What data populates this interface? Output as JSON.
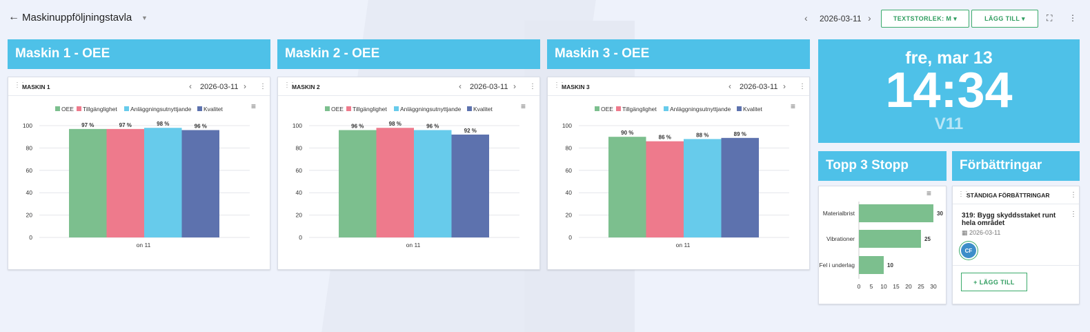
{
  "header": {
    "title": "Maskinuppföljningstavla",
    "back_icon": "←",
    "title_caret": "▼",
    "date": "2026-03-11",
    "prev_icon": "‹",
    "next_icon": "›",
    "textsize_label": "TEXTSTORLEK: M ▾",
    "add_label": "LÄGG TILL ▾",
    "fullscreen_icon": "⛶",
    "more_icon": "⋮"
  },
  "colors": {
    "accent": "#4ec1e8",
    "oee": "#7cbf8e",
    "availability": "#ee7a8c",
    "utilization": "#67cbeb",
    "quality": "#5d72ae"
  },
  "machines": [
    {
      "header": "Maskin 1 - OEE",
      "card_title": "MASKIN 1",
      "date": "2026-03-11"
    },
    {
      "header": "Maskin 2 - OEE",
      "card_title": "MASKIN 2",
      "date": "2026-03-11"
    },
    {
      "header": "Maskin 3 - OEE",
      "card_title": "MASKIN 3",
      "date": "2026-03-11"
    }
  ],
  "chart_data": [
    {
      "type": "bar",
      "categories": [
        "on 11"
      ],
      "series": [
        {
          "name": "OEE",
          "values": [
            97
          ]
        },
        {
          "name": "Tillgänglighet",
          "values": [
            97
          ]
        },
        {
          "name": "Anläggningsutnyttjande",
          "values": [
            98
          ]
        },
        {
          "name": "Kvalitet",
          "values": [
            96
          ]
        }
      ],
      "value_labels": [
        "97 %",
        "97 %",
        "98 %",
        "96 %"
      ],
      "yticks": [
        "0",
        "20",
        "40",
        "60",
        "80",
        "100"
      ],
      "ylim": [
        0,
        100
      ],
      "legend": "top",
      "menu_icon": "≡"
    },
    {
      "type": "bar",
      "categories": [
        "on 11"
      ],
      "series": [
        {
          "name": "OEE",
          "values": [
            96
          ]
        },
        {
          "name": "Tillgänglighet",
          "values": [
            98
          ]
        },
        {
          "name": "Anläggningsutnyttjande",
          "values": [
            96
          ]
        },
        {
          "name": "Kvalitet",
          "values": [
            92
          ]
        }
      ],
      "value_labels": [
        "96 %",
        "98 %",
        "96 %",
        "92 %"
      ],
      "yticks": [
        "0",
        "20",
        "40",
        "60",
        "80",
        "100"
      ],
      "ylim": [
        0,
        100
      ],
      "legend": "top",
      "menu_icon": "≡"
    },
    {
      "type": "bar",
      "categories": [
        "on 11"
      ],
      "series": [
        {
          "name": "OEE",
          "values": [
            90
          ]
        },
        {
          "name": "Tillgänglighet",
          "values": [
            86
          ]
        },
        {
          "name": "Anläggningsutnyttjande",
          "values": [
            88
          ]
        },
        {
          "name": "Kvalitet",
          "values": [
            89
          ]
        }
      ],
      "value_labels": [
        "90 %",
        "86 %",
        "88 %",
        "89 %"
      ],
      "yticks": [
        "0",
        "20",
        "40",
        "60",
        "80",
        "100"
      ],
      "ylim": [
        0,
        100
      ],
      "legend": "top",
      "menu_icon": "≡"
    },
    {
      "type": "bar",
      "orientation": "horizontal",
      "title": "Topp 3 Stopp",
      "categories": [
        "Materialbrist",
        "Vibrationer",
        "Fel i underlag"
      ],
      "values": [
        30,
        25,
        10
      ],
      "value_labels": [
        "30",
        "25",
        "10"
      ],
      "xticks": [
        "0",
        "5",
        "10",
        "15",
        "20",
        "25",
        "30"
      ],
      "xlim": [
        0,
        30
      ],
      "menu_icon": "≡"
    }
  ],
  "clock": {
    "day": "fre, mar 13",
    "time": "14:34",
    "week": "V11"
  },
  "stops": {
    "header": "Topp 3 Stopp"
  },
  "improvements": {
    "header": "Förbättringar",
    "card_title": "STÄNDIGA FÖRBÄTTRINGAR",
    "item_title": "319: Bygg skyddsstaket runt hela området",
    "item_date": "2026-03-11",
    "avatar": "CF",
    "add_label": "+ LÄGG TILL"
  }
}
